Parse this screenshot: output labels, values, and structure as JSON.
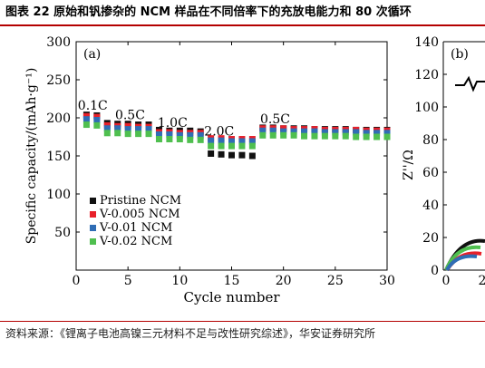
{
  "figure_title": "图表 22 原始和钒掺杂的 NCM 样品在不同倍率下的充放电能力和 80 次循环",
  "source": "资料来源：《锂离子电池高镍三元材料不足与改性研究综述》，华安证券研究所",
  "colors": {
    "title_rule": "#b40000",
    "pristine": "#111111",
    "v0005": "#e8202a",
    "v001": "#2f6db5",
    "v002": "#4fbf4f"
  },
  "chart_data": [
    {
      "panel_label": "(a)",
      "type": "scatter",
      "marker": "square",
      "xlabel": "Cycle number",
      "ylabel": "Specific capacity/(mAh·g⁻¹)",
      "xlim": [
        0,
        30
      ],
      "ylim": [
        0,
        300
      ],
      "xticks": [
        0,
        5,
        10,
        15,
        20,
        25,
        30
      ],
      "yticks": [
        50,
        100,
        150,
        200,
        250,
        300
      ],
      "grid": false,
      "legend_position": "bottom-left",
      "annotations": [
        {
          "text": "0.1C",
          "x": 1.6,
          "y": 211
        },
        {
          "text": "0.5C",
          "x": 5.2,
          "y": 198
        },
        {
          "text": "1.0C",
          "x": 9.3,
          "y": 188
        },
        {
          "text": "2.0C",
          "x": 13.8,
          "y": 177
        },
        {
          "text": "0.5C",
          "x": 19.2,
          "y": 193
        }
      ],
      "x": [
        1,
        2,
        3,
        4,
        5,
        6,
        7,
        8,
        9,
        10,
        11,
        12,
        13,
        14,
        15,
        16,
        17,
        18,
        19,
        20,
        21,
        22,
        23,
        24,
        25,
        26,
        27,
        28,
        29,
        30
      ],
      "series": [
        {
          "name": "Pristine NCM",
          "values": [
            204,
            203,
            193,
            192,
            192,
            191,
            191,
            184,
            183,
            183,
            183,
            182,
            153,
            152,
            151,
            151,
            150,
            187,
            187,
            186,
            186,
            186,
            185,
            185,
            185,
            185,
            184,
            184,
            184,
            184
          ]
        },
        {
          "name": "V-0.005 NCM",
          "values": [
            202,
            201,
            190,
            189,
            189,
            188,
            188,
            181,
            181,
            180,
            180,
            180,
            173,
            173,
            172,
            172,
            172,
            186,
            186,
            186,
            185,
            185,
            185,
            184,
            184,
            184,
            184,
            183,
            183,
            183
          ]
        },
        {
          "name": "V-0.01 NCM",
          "values": [
            198,
            197,
            186,
            186,
            185,
            185,
            185,
            178,
            178,
            177,
            177,
            177,
            170,
            170,
            169,
            169,
            169,
            183,
            183,
            182,
            182,
            182,
            182,
            181,
            181,
            181,
            181,
            180,
            180,
            180
          ]
        },
        {
          "name": "V-0.02 NCM",
          "values": [
            191,
            190,
            180,
            180,
            179,
            179,
            179,
            172,
            172,
            172,
            171,
            171,
            163,
            163,
            163,
            163,
            163,
            177,
            177,
            177,
            177,
            176,
            176,
            176,
            176,
            176,
            175,
            175,
            175,
            175
          ]
        }
      ]
    },
    {
      "panel_label": "(b)",
      "type": "line",
      "ylabel": "Z''/Ω",
      "ylim": [
        0,
        140
      ],
      "yticks": [
        0,
        20,
        40,
        60,
        80,
        100,
        120,
        140
      ],
      "xticks_visible": [
        "0",
        "2"
      ],
      "grid": false
    }
  ]
}
